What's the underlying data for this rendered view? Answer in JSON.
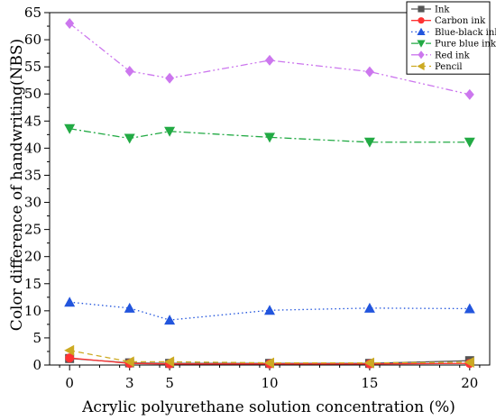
{
  "chart_data": {
    "type": "line",
    "xlabel": "Acrylic polyurethane solution concentration (%)",
    "ylabel": "Color difference of handwriting(NBS)",
    "xlim": [
      -1,
      21
    ],
    "ylim": [
      0,
      65
    ],
    "xticks": [
      0,
      3,
      5,
      10,
      15,
      20
    ],
    "yticks": [
      0,
      5,
      10,
      15,
      20,
      25,
      30,
      35,
      40,
      45,
      50,
      55,
      60,
      65
    ],
    "x": [
      0,
      3,
      5,
      10,
      15,
      20
    ],
    "grid": false,
    "legend_position": "top-right",
    "series": [
      {
        "name": "Ink",
        "color": "#555555",
        "marker": "square",
        "dash": "solid",
        "values": [
          1.2,
          0.4,
          0.3,
          0.3,
          0.3,
          0.8
        ]
      },
      {
        "name": "Carbon ink",
        "color": "#ff3333",
        "marker": "circle",
        "dash": "solid",
        "values": [
          1.3,
          0.3,
          0.2,
          0.2,
          0.2,
          0.3
        ]
      },
      {
        "name": "Blue-black ink",
        "color": "#2255dd",
        "marker": "triangle-up",
        "dash": "dot",
        "values": [
          11.6,
          10.5,
          8.3,
          10.1,
          10.5,
          10.4
        ]
      },
      {
        "name": "Pure blue ink",
        "color": "#22aa44",
        "marker": "triangle-down",
        "dash": "dashdot",
        "values": [
          43.6,
          41.8,
          43.1,
          42.0,
          41.1,
          41.1
        ]
      },
      {
        "name": "Red ink",
        "color": "#cc77ee",
        "marker": "diamond",
        "dash": "dashdotdot",
        "values": [
          63.0,
          54.2,
          52.9,
          56.2,
          54.1,
          49.9
        ]
      },
      {
        "name": "Pencil",
        "color": "#ccaa22",
        "marker": "triangle-left",
        "dash": "dash",
        "values": [
          2.7,
          0.6,
          0.6,
          0.4,
          0.4,
          0.5
        ]
      }
    ]
  }
}
